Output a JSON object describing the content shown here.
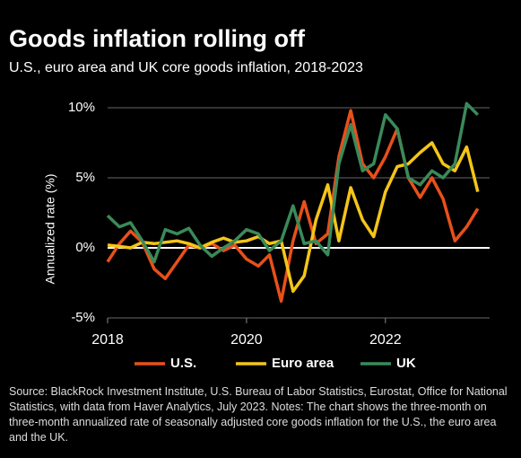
{
  "chart_data": {
    "type": "line",
    "title": "Goods inflation rolling off",
    "subtitle": "U.S., euro area and UK core goods inflation, 2018-2023",
    "y_label": "Annualized rate (%)",
    "source": "Source: BlackRock Investment Institute, U.S. Bureau of Labor Statistics, Eurostat, Office for National Statistics, with data from Haver Analytics, July 2023. Notes: The chart shows the three-month on three-month annualized rate of seasonally adjusted core goods inflation for the U.S., the euro area and the UK.",
    "x": [
      2018.0,
      2018.17,
      2018.33,
      2018.5,
      2018.67,
      2018.83,
      2019.0,
      2019.17,
      2019.33,
      2019.5,
      2019.67,
      2019.83,
      2020.0,
      2020.17,
      2020.33,
      2020.5,
      2020.67,
      2020.83,
      2021.0,
      2021.17,
      2021.33,
      2021.5,
      2021.67,
      2021.83,
      2022.0,
      2022.17,
      2022.33,
      2022.5,
      2022.67,
      2022.83,
      2023.0,
      2023.17,
      2023.33
    ],
    "series": [
      {
        "name": "U.S.",
        "color": "#e8501a",
        "values": [
          -1.0,
          0.3,
          1.2,
          0.4,
          -1.5,
          -2.2,
          -1.0,
          0.2,
          0.0,
          0.3,
          -0.2,
          0.2,
          -0.8,
          -1.3,
          -0.5,
          -3.8,
          0.5,
          3.3,
          0.3,
          1.0,
          6.5,
          9.8,
          6.0,
          5.0,
          6.5,
          8.5,
          5.0,
          3.6,
          5.0,
          3.5,
          0.5,
          1.5,
          2.8
        ]
      },
      {
        "name": "Euro area",
        "color": "#f5c518",
        "values": [
          0.2,
          0.1,
          0.0,
          0.4,
          0.3,
          0.4,
          0.5,
          0.3,
          0.0,
          0.4,
          0.7,
          0.4,
          0.5,
          0.8,
          0.3,
          0.5,
          -3.1,
          -2.0,
          2.0,
          4.5,
          0.5,
          4.3,
          2.0,
          0.8,
          4.0,
          5.8,
          6.0,
          6.8,
          7.5,
          6.0,
          5.5,
          7.2,
          4.0
        ]
      },
      {
        "name": "UK",
        "color": "#3a8a5a",
        "values": [
          2.3,
          1.5,
          1.8,
          0.5,
          -1.0,
          1.3,
          1.0,
          1.4,
          0.2,
          -0.6,
          0.0,
          0.5,
          1.3,
          1.0,
          -0.2,
          0.5,
          3.0,
          0.3,
          0.5,
          -0.5,
          6.0,
          8.8,
          5.5,
          6.0,
          9.5,
          8.5,
          5.0,
          4.5,
          5.5,
          5.0,
          6.0,
          10.3,
          9.5
        ]
      }
    ],
    "xlim": [
      2018,
      2023.5
    ],
    "xticks": [
      2018,
      2020,
      2022
    ],
    "ylim": [
      -5,
      10
    ],
    "yticks": [
      {
        "value": -5,
        "label": "-5%"
      },
      {
        "value": 0,
        "label": "0%"
      },
      {
        "value": 5,
        "label": "5%"
      },
      {
        "value": 10,
        "label": "10%"
      }
    ],
    "grid": true
  }
}
